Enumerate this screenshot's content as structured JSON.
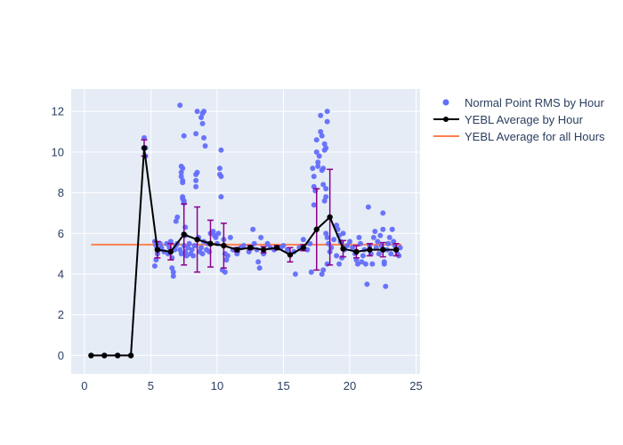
{
  "chart_data": {
    "type": "scatter",
    "title": "",
    "xlabel": "",
    "ylabel": "",
    "xlim": [
      -1,
      25.3
    ],
    "ylim": [
      -0.9,
      13.1
    ],
    "x_ticks": [
      0,
      5,
      10,
      15,
      20,
      25
    ],
    "y_ticks": [
      0,
      2,
      4,
      6,
      8,
      10,
      12
    ],
    "grid": true,
    "legend_placement": "top-right, outside plot",
    "colors": {
      "plot_bg": "#e5ecf6",
      "grid": "#ffffff",
      "scatter": "#636efa",
      "avg_line": "#000000",
      "error_bar": "#8b008b",
      "overall_line": "#ff7f50"
    },
    "series": [
      {
        "name": "Normal Point RMS by Hour",
        "type": "scatter",
        "points": [
          [
            4.5,
            10.7
          ],
          [
            4.6,
            10.2
          ],
          [
            4.6,
            9.8
          ],
          [
            5.3,
            5.6
          ],
          [
            5.4,
            5.4
          ],
          [
            5.4,
            4.7
          ],
          [
            5.3,
            4.4
          ],
          [
            5.5,
            5.0
          ],
          [
            5.6,
            5.2
          ],
          [
            5.7,
            5.5
          ],
          [
            5.8,
            5.3
          ],
          [
            6.0,
            5.1
          ],
          [
            6.2,
            5.5
          ],
          [
            6.3,
            5.0
          ],
          [
            6.4,
            5.3
          ],
          [
            6.5,
            5.6
          ],
          [
            6.6,
            4.8
          ],
          [
            6.6,
            4.3
          ],
          [
            6.7,
            4.1
          ],
          [
            6.7,
            3.9
          ],
          [
            6.8,
            5.2
          ],
          [
            6.9,
            5.4
          ],
          [
            6.9,
            6.6
          ],
          [
            7.0,
            6.8
          ],
          [
            7.0,
            5.5
          ],
          [
            7.2,
            12.3
          ],
          [
            7.3,
            9.3
          ],
          [
            7.3,
            9.0
          ],
          [
            7.3,
            8.8
          ],
          [
            7.4,
            8.6
          ],
          [
            7.4,
            9.2
          ],
          [
            7.4,
            8.5
          ],
          [
            7.5,
            10.8
          ],
          [
            7.4,
            7.8
          ],
          [
            7.5,
            7.6
          ],
          [
            7.5,
            7.5
          ],
          [
            7.4,
            7.7
          ],
          [
            7.6,
            6.3
          ],
          [
            7.6,
            5.9
          ],
          [
            7.2,
            5.2
          ],
          [
            7.3,
            5.0
          ],
          [
            7.5,
            5.4
          ],
          [
            7.6,
            5.1
          ],
          [
            7.7,
            4.9
          ],
          [
            7.8,
            5.3
          ],
          [
            7.9,
            5.5
          ],
          [
            8.0,
            5.0
          ],
          [
            8.1,
            5.2
          ],
          [
            8.2,
            4.9
          ],
          [
            8.3,
            5.4
          ],
          [
            8.5,
            12.0
          ],
          [
            8.4,
            10.9
          ],
          [
            8.5,
            9.0
          ],
          [
            8.4,
            8.9
          ],
          [
            8.4,
            8.6
          ],
          [
            8.4,
            8.3
          ],
          [
            8.6,
            5.8
          ],
          [
            8.7,
            5.1
          ],
          [
            8.8,
            5.3
          ],
          [
            8.9,
            5.0
          ],
          [
            8.8,
            11.7
          ],
          [
            8.9,
            11.9
          ],
          [
            9.0,
            12.0
          ],
          [
            8.9,
            11.4
          ],
          [
            9.0,
            10.7
          ],
          [
            9.1,
            10.3
          ],
          [
            9.0,
            5.6
          ],
          [
            9.2,
            5.2
          ],
          [
            9.3,
            5.5
          ],
          [
            9.4,
            5.1
          ],
          [
            9.5,
            6.0
          ],
          [
            9.7,
            6.1
          ],
          [
            9.8,
            5.9
          ],
          [
            9.9,
            5.8
          ],
          [
            10.0,
            5.5
          ],
          [
            10.1,
            6.0
          ],
          [
            10.2,
            9.2
          ],
          [
            10.2,
            8.9
          ],
          [
            10.3,
            8.8
          ],
          [
            10.3,
            10.1
          ],
          [
            10.3,
            7.8
          ],
          [
            10.4,
            4.2
          ],
          [
            10.6,
            4.1
          ],
          [
            10.5,
            5.7
          ],
          [
            10.6,
            5.0
          ],
          [
            10.7,
            4.7
          ],
          [
            10.8,
            4.9
          ],
          [
            11.0,
            5.8
          ],
          [
            11.2,
            5.2
          ],
          [
            11.5,
            5.0
          ],
          [
            11.8,
            5.3
          ],
          [
            12.0,
            5.4
          ],
          [
            12.4,
            5.1
          ],
          [
            12.6,
            5.3
          ],
          [
            12.7,
            6.2
          ],
          [
            12.8,
            5.5
          ],
          [
            13.0,
            5.2
          ],
          [
            13.1,
            4.6
          ],
          [
            13.2,
            4.3
          ],
          [
            13.3,
            5.8
          ],
          [
            13.5,
            5.0
          ],
          [
            13.8,
            5.5
          ],
          [
            14.0,
            5.3
          ],
          [
            14.3,
            5.2
          ],
          [
            14.8,
            5.3
          ],
          [
            15.0,
            5.4
          ],
          [
            15.3,
            5.2
          ],
          [
            15.8,
            5.1
          ],
          [
            15.9,
            4.0
          ],
          [
            16.2,
            5.3
          ],
          [
            16.5,
            5.7
          ],
          [
            16.8,
            5.2
          ],
          [
            17.0,
            5.5
          ],
          [
            17.1,
            4.1
          ],
          [
            17.2,
            9.2
          ],
          [
            17.3,
            8.8
          ],
          [
            17.3,
            8.3
          ],
          [
            17.4,
            8.1
          ],
          [
            17.3,
            7.4
          ],
          [
            17.5,
            10.6
          ],
          [
            17.5,
            10.0
          ],
          [
            17.6,
            9.5
          ],
          [
            17.6,
            9.3
          ],
          [
            17.7,
            9.8
          ],
          [
            17.8,
            11.8
          ],
          [
            17.8,
            11.0
          ],
          [
            17.9,
            10.8
          ],
          [
            17.9,
            9.1
          ],
          [
            18.0,
            9.2
          ],
          [
            17.9,
            4.0
          ],
          [
            18.0,
            4.2
          ],
          [
            18.0,
            8.4
          ],
          [
            18.1,
            10.4
          ],
          [
            18.2,
            10.2
          ],
          [
            18.1,
            10.1
          ],
          [
            18.1,
            7.6
          ],
          [
            18.2,
            7.8
          ],
          [
            18.3,
            11.5
          ],
          [
            18.3,
            12.0
          ],
          [
            18.2,
            8.2
          ],
          [
            18.2,
            6.0
          ],
          [
            18.3,
            5.8
          ],
          [
            18.4,
            5.5
          ],
          [
            18.3,
            4.5
          ],
          [
            18.5,
            5.1
          ],
          [
            18.6,
            5.3
          ],
          [
            18.8,
            5.7
          ],
          [
            19.0,
            6.4
          ],
          [
            19.1,
            6.2
          ],
          [
            19.2,
            5.9
          ],
          [
            19.3,
            5.6
          ],
          [
            19.5,
            6.0
          ],
          [
            19.0,
            4.9
          ],
          [
            19.2,
            4.5
          ],
          [
            19.4,
            4.8
          ],
          [
            19.6,
            5.2
          ],
          [
            19.8,
            5.4
          ],
          [
            20.0,
            5.6
          ],
          [
            20.2,
            5.3
          ],
          [
            20.4,
            5.0
          ],
          [
            20.5,
            4.7
          ],
          [
            20.6,
            4.5
          ],
          [
            20.7,
            5.8
          ],
          [
            20.8,
            5.5
          ],
          [
            20.9,
            4.6
          ],
          [
            21.0,
            4.9
          ],
          [
            21.1,
            5.2
          ],
          [
            21.2,
            4.5
          ],
          [
            21.3,
            3.5
          ],
          [
            21.4,
            7.3
          ],
          [
            21.5,
            5.4
          ],
          [
            21.6,
            5.0
          ],
          [
            21.7,
            4.5
          ],
          [
            21.8,
            5.8
          ],
          [
            21.9,
            6.1
          ],
          [
            22.0,
            5.3
          ],
          [
            22.1,
            5.6
          ],
          [
            22.2,
            5.0
          ],
          [
            22.3,
            5.9
          ],
          [
            22.4,
            5.4
          ],
          [
            22.5,
            6.2
          ],
          [
            22.5,
            7.0
          ],
          [
            22.6,
            4.6
          ],
          [
            22.6,
            4.5
          ],
          [
            22.7,
            3.4
          ],
          [
            22.8,
            5.2
          ],
          [
            22.9,
            5.5
          ],
          [
            23.0,
            5.8
          ],
          [
            23.1,
            5.0
          ],
          [
            23.2,
            6.2
          ],
          [
            23.3,
            5.6
          ],
          [
            23.4,
            5.4
          ],
          [
            23.5,
            5.2
          ],
          [
            23.6,
            5.0
          ],
          [
            23.7,
            4.9
          ],
          [
            23.8,
            5.3
          ]
        ]
      },
      {
        "name": "YEBL Average by Hour",
        "type": "line",
        "points": [
          [
            0.5,
            0
          ],
          [
            1.5,
            0
          ],
          [
            2.5,
            0
          ],
          [
            3.5,
            0
          ],
          [
            4.5,
            10.2
          ],
          [
            5.5,
            5.2
          ],
          [
            6.5,
            5.1
          ],
          [
            7.5,
            5.95
          ],
          [
            8.5,
            5.7
          ],
          [
            9.5,
            5.5
          ],
          [
            10.5,
            5.4
          ],
          [
            11.5,
            5.2
          ],
          [
            12.5,
            5.3
          ],
          [
            13.5,
            5.2
          ],
          [
            14.5,
            5.3
          ],
          [
            15.5,
            4.95
          ],
          [
            16.5,
            5.3
          ],
          [
            17.5,
            6.2
          ],
          [
            18.5,
            6.8
          ],
          [
            19.5,
            5.25
          ],
          [
            20.5,
            5.1
          ],
          [
            21.5,
            5.2
          ],
          [
            22.5,
            5.2
          ],
          [
            23.5,
            5.2
          ]
        ],
        "error": [
          0,
          0,
          0,
          0,
          0.4,
          0.4,
          0.4,
          1.5,
          1.6,
          1.15,
          1.1,
          0.1,
          0.1,
          0.15,
          0.1,
          0.35,
          0.15,
          2.0,
          2.35,
          0.4,
          0.3,
          0.3,
          0.35,
          0.3
        ]
      },
      {
        "name": "YEBL Average for all Hours",
        "type": "hline",
        "x_range": [
          0.5,
          23.9
        ],
        "value": 5.45
      }
    ]
  }
}
